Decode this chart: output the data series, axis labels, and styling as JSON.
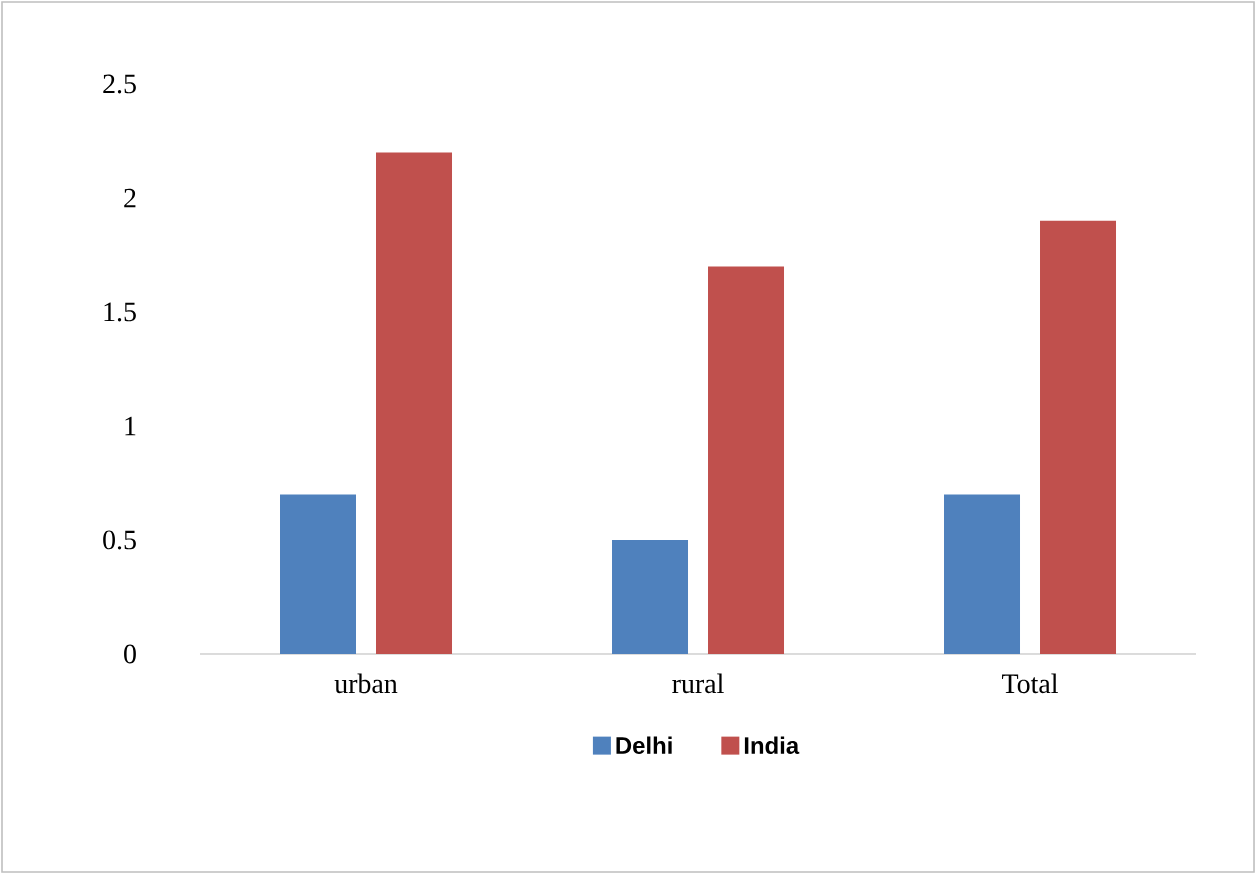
{
  "chart_data": {
    "type": "bar",
    "categories": [
      "urban",
      "rural",
      "Total"
    ],
    "series": [
      {
        "name": "Delhi",
        "color": "#4f81bd",
        "values": [
          0.7,
          0.5,
          0.7
        ]
      },
      {
        "name": "India",
        "color": "#c0504d",
        "values": [
          2.2,
          1.7,
          1.9
        ]
      }
    ],
    "ylim": [
      0,
      2.5
    ],
    "yticks": [
      0,
      0.5,
      1,
      1.5,
      2,
      2.5
    ],
    "grid": false,
    "legend": "bottom"
  }
}
